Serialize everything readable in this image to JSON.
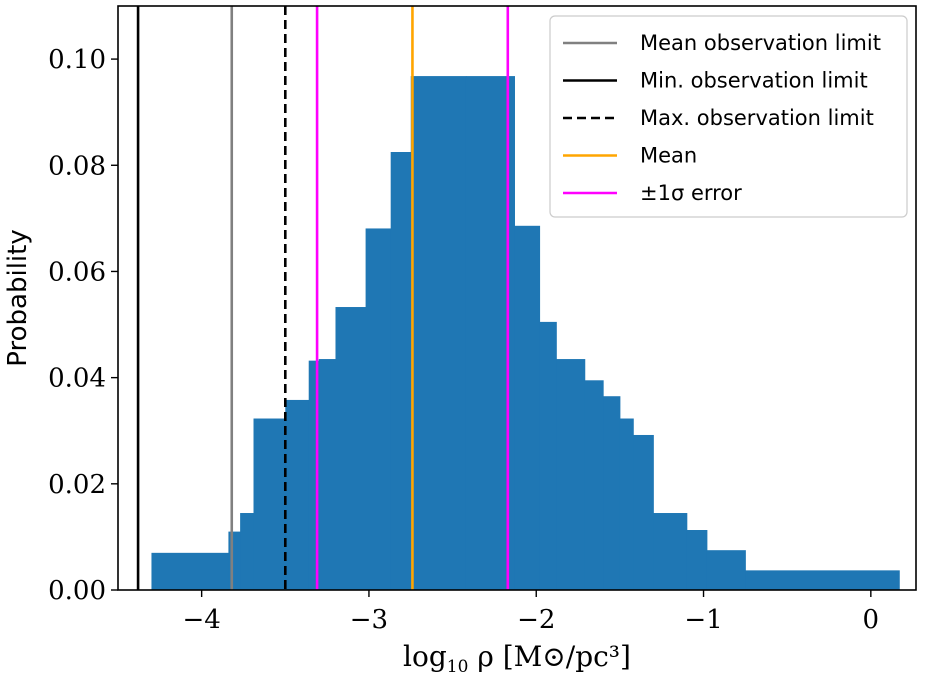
{
  "chart_data": {
    "type": "bar",
    "title": "",
    "xlabel": "log10 ρ [M⊙/pc3]",
    "ylabel": "Probability",
    "xlim": [
      -4.5,
      0.27
    ],
    "ylim": [
      0,
      0.11
    ],
    "xticks": [
      -4,
      -3,
      -2,
      -1,
      0
    ],
    "xtick_labels": [
      "−4",
      "−3",
      "−2",
      "−1",
      "0"
    ],
    "yticks": [
      0.0,
      0.02,
      0.04,
      0.06,
      0.08,
      0.1
    ],
    "ytick_labels": [
      "0.00",
      "0.02",
      "0.04",
      "0.06",
      "0.08",
      "0.10"
    ],
    "bar_color": "#1f77b4",
    "histogram": {
      "bin_edges": [
        -4.3,
        -3.84,
        -3.77,
        -3.69,
        -3.5,
        -3.36,
        -3.3,
        -3.2,
        -3.02,
        -2.87,
        -2.75,
        -2.42,
        -2.13,
        -1.98,
        -1.88,
        -1.71,
        -1.6,
        -1.5,
        -1.42,
        -1.3,
        -1.1,
        -0.98,
        -0.75,
        0.17
      ],
      "values": [
        0.007,
        0.011,
        0.0145,
        0.0323,
        0.0358,
        0.0432,
        0.0435,
        0.0533,
        0.0681,
        0.0825,
        0.0968,
        0.0968,
        0.0686,
        0.0505,
        0.0435,
        0.0395,
        0.0365,
        0.0323,
        0.0292,
        0.0145,
        0.0113,
        0.0075,
        0.0037
      ]
    },
    "vlines": [
      {
        "name": "Mean observation limit",
        "x": -3.82,
        "color": "#808080",
        "dash": "solid"
      },
      {
        "name": "Min. observation limit",
        "x": -4.38,
        "color": "#000000",
        "dash": "solid"
      },
      {
        "name": "Max. observation limit",
        "x": -3.5,
        "color": "#000000",
        "dash": "dashed"
      },
      {
        "name": "Mean",
        "x": -2.74,
        "color": "#ffa500",
        "dash": "solid"
      },
      {
        "name": "±1σ error",
        "x": -3.31,
        "color": "#ff00ff",
        "dash": "solid"
      },
      {
        "name": "±1σ error",
        "x": -2.17,
        "color": "#ff00ff",
        "dash": "solid"
      }
    ],
    "legend": {
      "position": "upper right",
      "entries": [
        {
          "label": "Mean observation limit",
          "color": "#808080",
          "dash": "solid"
        },
        {
          "label": "Min. observation limit",
          "color": "#000000",
          "dash": "solid"
        },
        {
          "label": "Max. observation limit",
          "color": "#000000",
          "dash": "dashed"
        },
        {
          "label": "Mean",
          "color": "#ffa500",
          "dash": "solid"
        },
        {
          "label": "±1σ error",
          "color": "#ff00ff",
          "dash": "solid"
        }
      ]
    }
  }
}
